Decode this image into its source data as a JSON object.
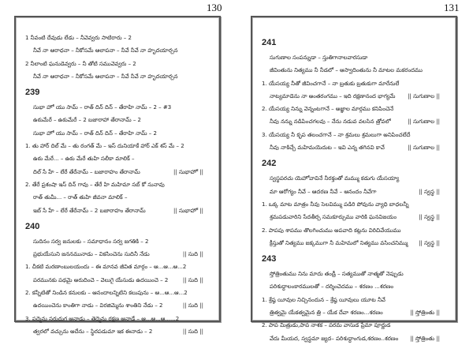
{
  "left_page": {
    "page_number": "130",
    "blocks": [
      {
        "heading": "",
        "lines": [
          {
            "num": true,
            "text": "1  నీవంటి దేవుడు లేడు – నీవెవ్వరు సాటిరారు   – 2",
            "tag": ""
          },
          {
            "num": false,
            "text": "నీవే నా ఆరాధనా – నీకోసమే ఆలాపనా – నీవే నీవే నా హృదయార్చన",
            "tag": ""
          },
          {
            "num": true,
            "text": "2  నీలాంటి ఘనుడెవ్వరు – నీ తోటి సమువెవ్వరు  – 2",
            "tag": ""
          },
          {
            "num": false,
            "text": "నీవే నా ఆరాధనా – నీకోసమే ఆలాపనా – నీవే నీవే నా హృదయార్చన",
            "tag": ""
          }
        ]
      },
      {
        "heading": "239",
        "lines": [
          {
            "num": false,
            "text": "సుభా హో యు సామ్ – రాత్ దిన్ దిన్ – తేరాహి నామ్ – 2 – #3",
            "tag": ""
          },
          {
            "num": false,
            "text": "ఉఠుమేరే – ఉఠుమేరే – 2 బజారాహా తేరానామ్ – 2",
            "tag": ""
          },
          {
            "num": false,
            "text": "సుభా హో యు సామ్ – రాత్ దిన్ దిన్ – తేరాహి నామ్ – 2",
            "tag": ""
          },
          {
            "num": true,
            "text": "1. తు హార్ దిల్ మే – తు రంగత్ మే – ఇస్ దునియాకే హార్ ఎక్ శస్ మే – 2",
            "tag": ""
          },
          {
            "num": false,
            "text": "ఉఠు మేరే... – ఉఠు మేరే తుహి సలీకా మాలిక్ –",
            "tag": ""
          },
          {
            "num": false,
            "text": "దిల్ సే హే – లేరే తేరేనామ్ – బజారాహం తేరానామ్",
            "tag": "|| సుభాహో ||"
          },
          {
            "num": true,
            "text": "2. తేరే ప్రశంషా ఇస్ దిన్ గావు – తేరే హి మహిమా సబ్ కో సునావు",
            "tag": ""
          },
          {
            "num": false,
            "text": "రాత్ తుమీ... – రాత్ తుహి జీవనా మాలిక్ –",
            "tag": ""
          },
          {
            "num": false,
            "text": "ఇబ్ సే హే – లేరే తేరేనామ్ – 2  బజారాహం తేరానామ్",
            "tag": "|| సుభాహో ||"
          }
        ]
      },
      {
        "heading": "240",
        "lines": [
          {
            "num": false,
            "text": "సుదినం సర్వ జనులకు – సమాధానం సర్వ జగతికి – 2",
            "tag": ""
          },
          {
            "num": false,
            "text": "ప్రభుయేసుని జననమునాడు – వికసించెను సుదినీ నేడు",
            "tag": "|| సుది ||"
          },
          {
            "num": true,
            "text": "1. చీకటి మరణాంబులయందు – ఈ మానవ జీవిత మార్గం – ఆ...ఆ...ఆ...2",
            "tag": ""
          },
          {
            "num": false,
            "text": "పరమునకు పథమై అరుదించె – వెలుగై యేసుడు ఉదయించె – 2",
            "tag": "|| సుది ||"
          },
          {
            "num": true,
            "text": "2. కన్నీటితో నిండిన కనులకు – ఆనందాలన్నిటిని కలుపును – ఆ...ఆ...ఆ...2",
            "tag": ""
          },
          {
            "num": false,
            "text": "ఉదయించెను కాంతిగా నాడు – విరజిమ్మెను శాంతిని నేడు – 2",
            "tag": "|| సుది ||"
          },
          {
            "num": true,
            "text": "3. పద్మెను సరుదుగ ఆనాడు – తెద్మెను రక్షణ ఆనాడే – ఆ...ఆ...ఆ......2",
            "tag": ""
          },
          {
            "num": false,
            "text": "త్వరలో వచ్చును అదేను – స్థిరపడుమా ఇక ఈనాడు – 2",
            "tag": "|| సుది ||"
          }
        ]
      }
    ]
  },
  "right_page": {
    "page_number": "131",
    "blocks": [
      {
        "heading": "241",
        "lines": [
          {
            "num": false,
            "text": "సుగుణాల సంపన్నుడా – స్తుతిగానాలవారసుడా",
            "tag": ""
          },
          {
            "num": false,
            "text": "జీవింతును నిత్యము నీ నీడలో – ఆస్వాదింతును నీ మాటల మకరందము",
            "tag": ""
          },
          {
            "num": true,
            "text": "1. యేసయ్య నీతో జీవించగానే – నా బ్రతుకు బ్రతుకుగా మారేనులే",
            "tag": ""
          },
          {
            "num": false,
            "text": "నాట్యమాడెను నా అంతరంగము – ఇది రక్షణానంద భాగ్యమే",
            "tag": "|| సుగుణాల ||"
          },
          {
            "num": true,
            "text": "2. యేసయ్య నిన్ను వెన్నంటగానే – అజ్ఞాల మార్గము కనిపించెనే",
            "tag": ""
          },
          {
            "num": false,
            "text": "నీవు నన్ను నడిపించగలవు – నేను నడువ వలసిన త్రోవలో",
            "tag": "|| సుగుణాల ||"
          },
          {
            "num": true,
            "text": "3. యేసయ్య నీ కృప తలంచగానే – నా శ్రమలు శ్రమలుగా అనిపించలేదే",
            "tag": ""
          },
          {
            "num": false,
            "text": "నీవు నాకిచ్చే మహిమయెదుట – ఇవి ఎన్న తగినవి కావే",
            "tag": "|| సుగుణాల ||"
          }
        ]
      },
      {
        "heading": "242",
        "lines": [
          {
            "num": false,
            "text": "స్వస్థపరచు యెహోవావినే నీరక్తంతో మమ్ము కడుగు యేసయ్యా",
            "tag": ""
          },
          {
            "num": false,
            "text": "మా ఆరోగ్యం నీవే – ఆదరణ నీవే – ఆనందం నీవేగా",
            "tag": "|| స్వస్థ ||"
          },
          {
            "num": true,
            "text": "1. ఒక్క మాట మాత్రం నీవు సెలవిమ్ము పడిరి పోవును వ్యాధి బాధలన్నీ",
            "tag": ""
          },
          {
            "num": false,
            "text": "శ్రమపడువారిని సేదతీర్చ సమకూర్చుము వారికి ఘనవిజయం",
            "tag": "|| స్వస్థ ||"
          },
          {
            "num": true,
            "text": "2. పాపపు శాపము తొలగించుము అపవాది కట్లను విరిచివేయుము",
            "tag": ""
          },
          {
            "num": false,
            "text": "క్రీస్తుతో నిత్యము జక్కముగా నీ మహిమలో నిత్యము వసించనిమ్ము",
            "tag": "|| స్వస్థ ||"
          }
        ]
      },
      {
        "heading": "243",
        "lines": [
          {
            "num": false,
            "text": "స్తోత్రింతుము నిను మాదు తండ్రీ – సత్యముతో నాత్మతో నెప్పుడు",
            "tag": ""
          },
          {
            "num": false,
            "text": "పరిశుద్ధాలంకారములతో – దర్శించెదము – శరణం ...శరణం",
            "tag": ""
          },
          {
            "num": true,
            "text": "1. శ్రేష్ఠ యీవుల నిచ్చినందున – శ్రేష్ఠ యీవులు యూట నీవే",
            "tag": ""
          },
          {
            "num": false,
            "text": "త్రిత్వమై యేకత్వమైన త్రి – యేక దేవా శరణం...శరణం",
            "tag": "|| స్తోత్రింతు ||"
          },
          {
            "num": true,
            "text": "2. పాప మిత్రుడు,పాప నాశక – పరమ వాసుడ ప్రేమా పూర్ణుడ",
            "tag": ""
          },
          {
            "num": false,
            "text": "వేదు మీయద, స్వస్థమా జ్యద– పరిశుద్ధాంగుడ,శరణం..శరణం",
            "tag": "|| స్తోత్రింతు ||"
          }
        ]
      }
    ]
  }
}
